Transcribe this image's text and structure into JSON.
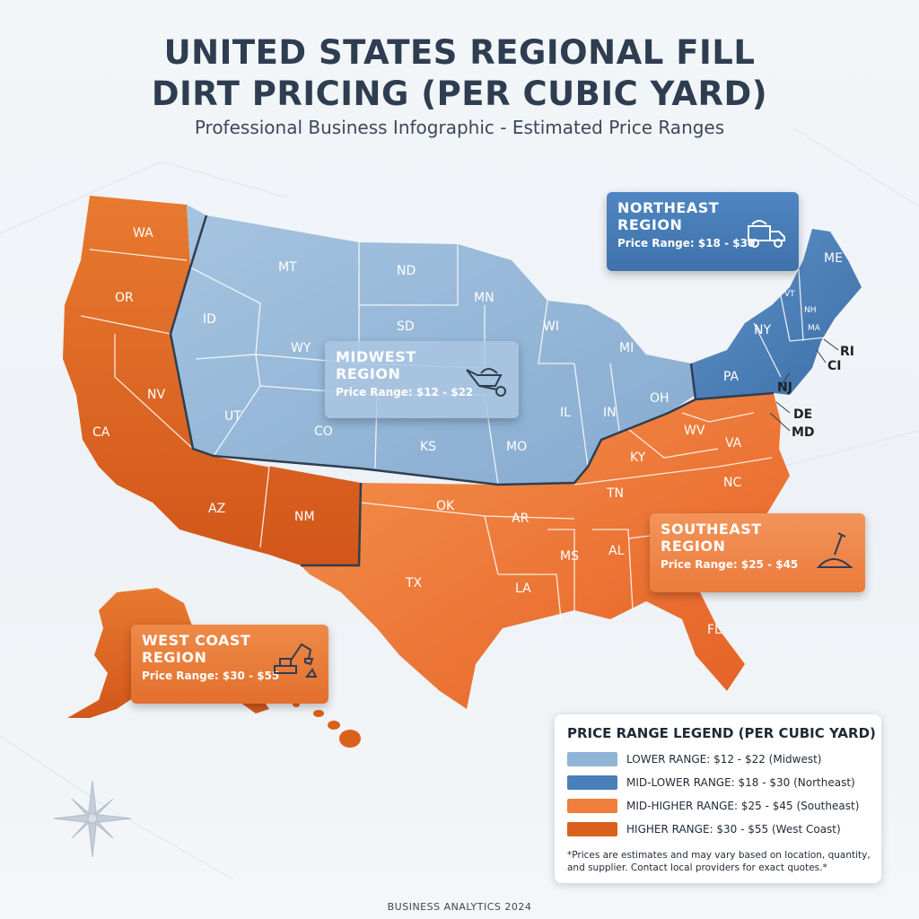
{
  "title_line1": "UNITED STATES REGIONAL FILL",
  "title_line2": "DIRT PRICING (PER CUBIC YARD)",
  "subtitle": "Professional Business Infographic - Estimated Price Ranges",
  "colors": {
    "midwest": "#8fb4d6",
    "northeast": "#4a7fb8",
    "southeast": "#ef7e3c",
    "west_coast": "#d9611c"
  },
  "state_labels": [
    "WA",
    "OR",
    "CA",
    "NV",
    "ID",
    "MT",
    "WY",
    "UT",
    "AZ",
    "NM",
    "CO",
    "ND",
    "SD",
    "KS",
    "OK",
    "TX",
    "MN",
    "WI",
    "MI",
    "IL",
    "IN",
    "OH",
    "MO",
    "AR",
    "LA",
    "MS",
    "AL",
    "TN",
    "KY",
    "WV",
    "VA",
    "NC",
    "FL",
    "PA",
    "NY",
    "ME",
    "VT",
    "NH",
    "MA"
  ],
  "outside_labels": [
    "RI",
    "CI",
    "NJ",
    "DE",
    "MD"
  ],
  "regions": {
    "northeast": {
      "name": "NORTHEAST REGION",
      "price": "Price Range: $18 - $30",
      "icon": "dump-truck-icon"
    },
    "midwest": {
      "name": "MIDWEST REGION",
      "price": "Price Range: $12 - $22",
      "icon": "wheelbarrow-icon"
    },
    "southeast": {
      "name": "SOUTHEAST REGION",
      "price": "Price Range: $25 - $45",
      "icon": "shovel-dirt-icon"
    },
    "west_coast": {
      "name": "WEST COAST REGION",
      "price": "Price Range: $30 - $55",
      "icon": "excavator-icon"
    }
  },
  "legend": {
    "title": "PRICE RANGE LEGEND (PER CUBIC YARD)",
    "rows": [
      {
        "label": "LOWER RANGE: $12 - $22 (Midwest)"
      },
      {
        "label": "MID-LOWER RANGE: $18 - $30 (Northeast)"
      },
      {
        "label": "MID-HIGHER RANGE: $25 - $45 (Southeast)"
      },
      {
        "label": "HIGHER RANGE: $30 - $55 (West Coast)"
      }
    ],
    "note": "*Prices are estimates and may vary based on location, quantity, and supplier. Contact local providers for exact quotes.*"
  },
  "footer": "BUSINESS ANALYTICS 2024"
}
